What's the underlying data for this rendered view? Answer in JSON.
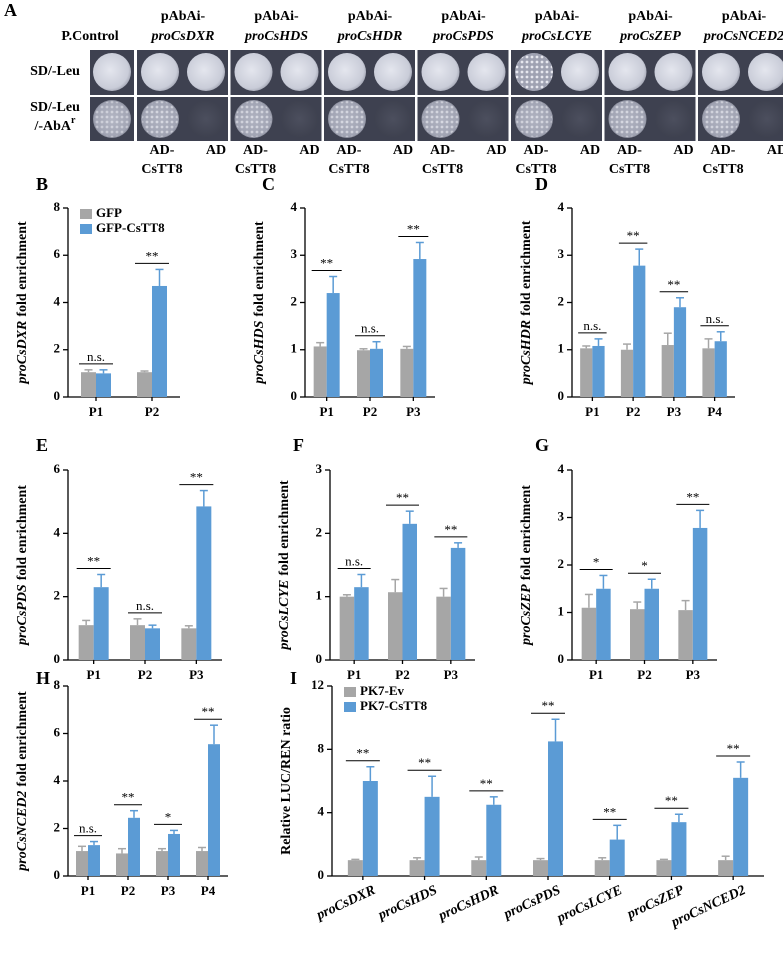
{
  "panel_a": {
    "panel": "A",
    "control": "P.Control",
    "prefix": "pAbAi-",
    "constructs": [
      "proCsDXR",
      "proCsHDS",
      "proCsHDR",
      "proCsPDS",
      "proCsLCYE",
      "proCsZEP",
      "proCsNCED2"
    ],
    "rows": [
      {
        "lines": [
          "SD/-Leu"
        ]
      },
      {
        "lines": [
          "SD/-Leu",
          "/-AbA"
        ],
        "sup": "r"
      }
    ],
    "effectors": [
      [
        "AD-",
        "CsTT8"
      ],
      [
        "AD"
      ]
    ]
  },
  "chart_data": [
    {
      "type": "bar",
      "panel": "B",
      "ylabel_gene": "proCsDXR",
      "ylabel": "fold enrichment",
      "categories": [
        "P1",
        "P2"
      ],
      "series": [
        {
          "name": "GFP",
          "color": "#a6a6a6",
          "values": [
            1.05,
            1.05
          ],
          "errors": [
            0.1,
            0.05
          ]
        },
        {
          "name": "GFP-CsTT8",
          "color": "#5b9bd5",
          "values": [
            1.0,
            4.7
          ],
          "errors": [
            0.15,
            0.7
          ]
        }
      ],
      "annotations": [
        "n.s.",
        "**"
      ],
      "ylim": [
        0,
        8
      ],
      "yticks": [
        0,
        2,
        4,
        6,
        8
      ],
      "legend": "upper left"
    },
    {
      "type": "bar",
      "panel": "C",
      "ylabel_gene": "proCsHDS",
      "ylabel": "fold enrichment",
      "categories": [
        "P1",
        "P2",
        "P3"
      ],
      "series": [
        {
          "color": "#a6a6a6",
          "values": [
            1.07,
            0.99,
            1.02
          ],
          "errors": [
            0.08,
            0.03,
            0.05
          ]
        },
        {
          "color": "#5b9bd5",
          "values": [
            2.2,
            1.02,
            2.92
          ],
          "errors": [
            0.35,
            0.15,
            0.35
          ]
        }
      ],
      "annotations": [
        "**",
        "n.s.",
        "**"
      ],
      "ylim": [
        0,
        4
      ],
      "yticks": [
        0,
        1,
        2,
        3,
        4
      ]
    },
    {
      "type": "bar",
      "panel": "D",
      "ylabel_gene": "proCsHDR",
      "ylabel": "fold enrichment",
      "categories": [
        "P1",
        "P2",
        "P3",
        "P4"
      ],
      "series": [
        {
          "color": "#a6a6a6",
          "values": [
            1.03,
            1.0,
            1.1,
            1.03
          ],
          "errors": [
            0.05,
            0.12,
            0.25,
            0.2
          ]
        },
        {
          "color": "#5b9bd5",
          "values": [
            1.08,
            2.78,
            1.9,
            1.18
          ],
          "errors": [
            0.15,
            0.35,
            0.2,
            0.2
          ]
        }
      ],
      "annotations": [
        "n.s.",
        "**",
        "**",
        "n.s."
      ],
      "ylim": [
        0,
        4
      ],
      "yticks": [
        0,
        1,
        2,
        3,
        4
      ]
    },
    {
      "type": "bar",
      "panel": "E",
      "ylabel_gene": "proCsPDS",
      "ylabel": "fold enrichment",
      "categories": [
        "P1",
        "P2",
        "P3"
      ],
      "series": [
        {
          "color": "#a6a6a6",
          "values": [
            1.1,
            1.1,
            1.0
          ],
          "errors": [
            0.15,
            0.2,
            0.08
          ]
        },
        {
          "color": "#5b9bd5",
          "values": [
            2.3,
            1.0,
            4.85
          ],
          "errors": [
            0.4,
            0.1,
            0.5
          ]
        }
      ],
      "annotations": [
        "**",
        "n.s.",
        "**"
      ],
      "ylim": [
        0,
        6
      ],
      "yticks": [
        0,
        2,
        4,
        6
      ]
    },
    {
      "type": "bar",
      "panel": "F",
      "ylabel_gene": "proCsLCYE",
      "ylabel": "fold enrichment",
      "categories": [
        "P1",
        "P2",
        "P3"
      ],
      "series": [
        {
          "color": "#a6a6a6",
          "values": [
            1.0,
            1.07,
            1.0
          ],
          "errors": [
            0.03,
            0.2,
            0.13
          ]
        },
        {
          "color": "#5b9bd5",
          "values": [
            1.15,
            2.15,
            1.77
          ],
          "errors": [
            0.2,
            0.2,
            0.08
          ]
        }
      ],
      "annotations": [
        "n.s.",
        "**",
        "**"
      ],
      "ylim": [
        0,
        3
      ],
      "yticks": [
        0,
        1,
        2,
        3
      ]
    },
    {
      "type": "bar",
      "panel": "G",
      "ylabel_gene": "proCsZEP",
      "ylabel": "fold enrichment",
      "categories": [
        "P1",
        "P2",
        "P3"
      ],
      "series": [
        {
          "color": "#a6a6a6",
          "values": [
            1.1,
            1.07,
            1.05
          ],
          "errors": [
            0.28,
            0.15,
            0.2
          ]
        },
        {
          "color": "#5b9bd5",
          "values": [
            1.5,
            1.5,
            2.78
          ],
          "errors": [
            0.28,
            0.2,
            0.37
          ]
        }
      ],
      "annotations": [
        "*",
        "*",
        "**"
      ],
      "ylim": [
        0,
        4
      ],
      "yticks": [
        0,
        1,
        2,
        3,
        4
      ]
    },
    {
      "type": "bar",
      "panel": "H",
      "ylabel_gene": "proCsNCED2",
      "ylabel": "fold enrichment",
      "categories": [
        "P1",
        "P2",
        "P3",
        "P4"
      ],
      "series": [
        {
          "color": "#a6a6a6",
          "values": [
            1.05,
            0.95,
            1.05,
            1.05
          ],
          "errors": [
            0.2,
            0.2,
            0.1,
            0.15
          ]
        },
        {
          "color": "#5b9bd5",
          "values": [
            1.3,
            2.45,
            1.77,
            5.55
          ],
          "errors": [
            0.15,
            0.3,
            0.15,
            0.8
          ]
        }
      ],
      "annotations": [
        "n.s.",
        "**",
        "*",
        "**"
      ],
      "ylim": [
        0,
        8
      ],
      "yticks": [
        0,
        2,
        4,
        6,
        8
      ]
    },
    {
      "type": "bar",
      "panel": "I",
      "ylabel": "Relative LUC/REN ratio",
      "categories": [
        "proCsDXR",
        "proCsHDS",
        "proCsHDR",
        "proCsPDS",
        "proCsLCYE",
        "proCsZEP",
        "proCsNCED2"
      ],
      "series": [
        {
          "name": "PK7-Ev",
          "color": "#a6a6a6",
          "values": [
            1.0,
            1.0,
            1.0,
            1.0,
            1.0,
            1.0,
            1.0
          ],
          "errors": [
            0.05,
            0.15,
            0.2,
            0.1,
            0.15,
            0.05,
            0.25
          ]
        },
        {
          "name": "PK7-CsTT8",
          "color": "#5b9bd5",
          "values": [
            6.0,
            5.0,
            4.5,
            8.5,
            2.3,
            3.4,
            6.2
          ],
          "errors": [
            0.9,
            1.3,
            0.5,
            1.4,
            0.9,
            0.5,
            1.0
          ]
        }
      ],
      "annotations": [
        "**",
        "**",
        "**",
        "**",
        "**",
        "**",
        "**"
      ],
      "ylim": [
        0,
        12
      ],
      "yticks": [
        0,
        4,
        8,
        12
      ],
      "legend": "upper left"
    }
  ]
}
